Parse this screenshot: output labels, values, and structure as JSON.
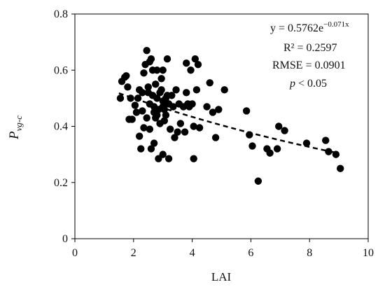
{
  "chart_data": {
    "type": "scatter",
    "xlabel": "LAI",
    "ylabel": {
      "main": "P",
      "subscript": "vg-c"
    },
    "xlim": [
      0,
      10
    ],
    "ylim": [
      0,
      0.8
    ],
    "x_ticks": [
      0,
      2,
      4,
      6,
      8,
      10
    ],
    "y_ticks": [
      0,
      0.2,
      0.4,
      0.6,
      0.8
    ],
    "x_tick_labels": [
      "0",
      "2",
      "4",
      "6",
      "8",
      "10"
    ],
    "y_tick_labels": [
      "0",
      "0.2",
      "0.4",
      "0.6",
      "0.8"
    ],
    "grid": false,
    "marker_color": "#000000",
    "annotations": {
      "equation_prefix": "y = 0.5762e",
      "equation_exponent": "−0.071x",
      "r2": "R² = 0.2597",
      "rmse": "RMSE = 0.0901",
      "p_italic": "p",
      "p_rest": " < 0.05"
    },
    "trendline": {
      "a": 0.5762,
      "b": -0.071,
      "x_range": [
        1.5,
        9.0
      ],
      "style": "dashed"
    },
    "points": [
      {
        "x": 1.55,
        "y": 0.5
      },
      {
        "x": 1.6,
        "y": 0.56
      },
      {
        "x": 1.7,
        "y": 0.575
      },
      {
        "x": 1.75,
        "y": 0.58
      },
      {
        "x": 1.8,
        "y": 0.54
      },
      {
        "x": 1.85,
        "y": 0.425
      },
      {
        "x": 1.95,
        "y": 0.425
      },
      {
        "x": 1.9,
        "y": 0.5
      },
      {
        "x": 2.05,
        "y": 0.475
      },
      {
        "x": 2.1,
        "y": 0.45
      },
      {
        "x": 2.15,
        "y": 0.5
      },
      {
        "x": 2.2,
        "y": 0.53
      },
      {
        "x": 2.2,
        "y": 0.365
      },
      {
        "x": 2.25,
        "y": 0.32
      },
      {
        "x": 2.3,
        "y": 0.455
      },
      {
        "x": 2.3,
        "y": 0.52
      },
      {
        "x": 2.35,
        "y": 0.395
      },
      {
        "x": 2.35,
        "y": 0.59
      },
      {
        "x": 2.4,
        "y": 0.62
      },
      {
        "x": 2.45,
        "y": 0.67
      },
      {
        "x": 2.45,
        "y": 0.43
      },
      {
        "x": 2.5,
        "y": 0.54
      },
      {
        "x": 2.5,
        "y": 0.52
      },
      {
        "x": 2.55,
        "y": 0.48
      },
      {
        "x": 2.55,
        "y": 0.39
      },
      {
        "x": 2.55,
        "y": 0.63
      },
      {
        "x": 2.6,
        "y": 0.64
      },
      {
        "x": 2.6,
        "y": 0.32
      },
      {
        "x": 2.65,
        "y": 0.6
      },
      {
        "x": 2.65,
        "y": 0.51
      },
      {
        "x": 2.7,
        "y": 0.47
      },
      {
        "x": 2.7,
        "y": 0.45
      },
      {
        "x": 2.7,
        "y": 0.34
      },
      {
        "x": 2.75,
        "y": 0.55
      },
      {
        "x": 2.75,
        "y": 0.43
      },
      {
        "x": 2.8,
        "y": 0.6
      },
      {
        "x": 2.8,
        "y": 0.5
      },
      {
        "x": 2.8,
        "y": 0.44
      },
      {
        "x": 2.85,
        "y": 0.285
      },
      {
        "x": 2.85,
        "y": 0.46
      },
      {
        "x": 2.9,
        "y": 0.52
      },
      {
        "x": 2.9,
        "y": 0.41
      },
      {
        "x": 2.95,
        "y": 0.57
      },
      {
        "x": 2.95,
        "y": 0.53
      },
      {
        "x": 3.0,
        "y": 0.6
      },
      {
        "x": 3.0,
        "y": 0.49
      },
      {
        "x": 3.0,
        "y": 0.47
      },
      {
        "x": 3.0,
        "y": 0.3
      },
      {
        "x": 3.05,
        "y": 0.46
      },
      {
        "x": 3.05,
        "y": 0.42
      },
      {
        "x": 3.1,
        "y": 0.5
      },
      {
        "x": 3.1,
        "y": 0.44
      },
      {
        "x": 3.15,
        "y": 0.64
      },
      {
        "x": 3.15,
        "y": 0.51
      },
      {
        "x": 3.2,
        "y": 0.48
      },
      {
        "x": 3.2,
        "y": 0.285
      },
      {
        "x": 3.25,
        "y": 0.39
      },
      {
        "x": 3.3,
        "y": 0.51
      },
      {
        "x": 3.35,
        "y": 0.47
      },
      {
        "x": 3.4,
        "y": 0.36
      },
      {
        "x": 3.45,
        "y": 0.53
      },
      {
        "x": 3.5,
        "y": 0.38
      },
      {
        "x": 3.55,
        "y": 0.48
      },
      {
        "x": 3.6,
        "y": 0.41
      },
      {
        "x": 3.7,
        "y": 0.47
      },
      {
        "x": 3.75,
        "y": 0.38
      },
      {
        "x": 3.8,
        "y": 0.625
      },
      {
        "x": 3.8,
        "y": 0.52
      },
      {
        "x": 3.85,
        "y": 0.48
      },
      {
        "x": 3.9,
        "y": 0.47
      },
      {
        "x": 3.95,
        "y": 0.6
      },
      {
        "x": 4.0,
        "y": 0.48
      },
      {
        "x": 4.05,
        "y": 0.4
      },
      {
        "x": 4.05,
        "y": 0.285
      },
      {
        "x": 4.1,
        "y": 0.64
      },
      {
        "x": 4.15,
        "y": 0.53
      },
      {
        "x": 4.2,
        "y": 0.62
      },
      {
        "x": 4.25,
        "y": 0.395
      },
      {
        "x": 4.5,
        "y": 0.47
      },
      {
        "x": 4.6,
        "y": 0.555
      },
      {
        "x": 4.7,
        "y": 0.45
      },
      {
        "x": 4.8,
        "y": 0.36
      },
      {
        "x": 4.9,
        "y": 0.46
      },
      {
        "x": 5.1,
        "y": 0.53
      },
      {
        "x": 5.85,
        "y": 0.455
      },
      {
        "x": 5.95,
        "y": 0.37
      },
      {
        "x": 6.05,
        "y": 0.33
      },
      {
        "x": 6.25,
        "y": 0.205
      },
      {
        "x": 6.55,
        "y": 0.32
      },
      {
        "x": 6.65,
        "y": 0.305
      },
      {
        "x": 6.9,
        "y": 0.32
      },
      {
        "x": 6.95,
        "y": 0.4
      },
      {
        "x": 7.15,
        "y": 0.385
      },
      {
        "x": 7.9,
        "y": 0.34
      },
      {
        "x": 8.55,
        "y": 0.35
      },
      {
        "x": 8.65,
        "y": 0.31
      },
      {
        "x": 8.9,
        "y": 0.3
      },
      {
        "x": 9.05,
        "y": 0.25
      }
    ]
  }
}
